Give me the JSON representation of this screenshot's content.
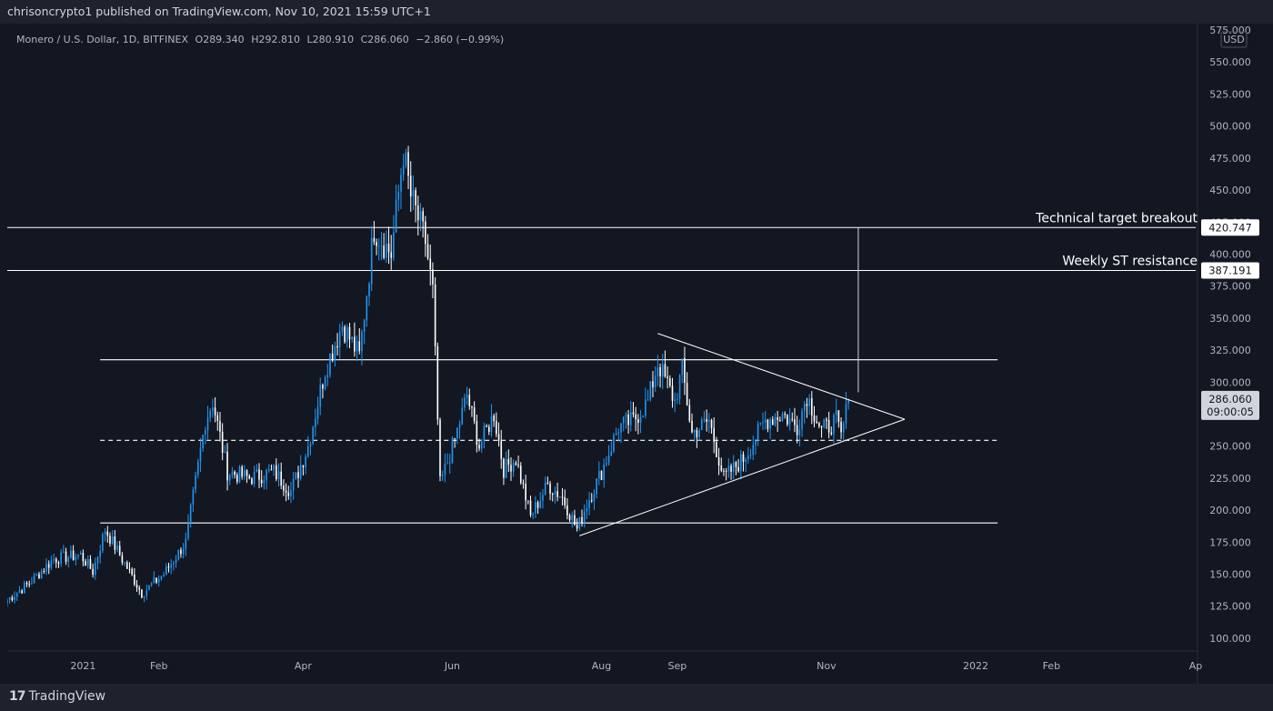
{
  "header": {
    "publisher": "chrisoncrypto1 published on TradingView.com, Nov 10, 2021 15:59 UTC+1"
  },
  "legend": {
    "symbol": "Monero / U.S. Dollar, 1D, BITFINEX",
    "open": "O289.340",
    "high": "H292.810",
    "low": "L280.910",
    "close": "C286.060",
    "change": "−2.860 (−0.99%)"
  },
  "footer": {
    "brand": "TradingView",
    "logo_icon": "tradingview-logo-icon"
  },
  "colors": {
    "up": "#2196f3",
    "down": "#ffffff",
    "background": "#131722",
    "lines": "#ffffff",
    "grid": "#1e222d"
  },
  "chart_data": {
    "type": "candlestick",
    "currency": "USD",
    "y_ticks": [
      "575.000",
      "550.000",
      "525.000",
      "500.000",
      "475.000",
      "450.000",
      "425.000",
      "400.000",
      "375.000",
      "350.000",
      "325.000",
      "300.000",
      "275.000",
      "250.000",
      "225.000",
      "200.000",
      "175.000",
      "150.000",
      "125.000",
      "100.000"
    ],
    "ylim": [
      90,
      580
    ],
    "x_ticks": [
      "2021",
      "Feb",
      "Apr",
      "Jun",
      "Aug",
      "Sep",
      "Nov",
      "2022",
      "Feb",
      "Ap"
    ],
    "x_tick_dates": [
      "2021-01-01",
      "2021-02-01",
      "2021-04-01",
      "2021-06-01",
      "2021-08-01",
      "2021-09-01",
      "2021-11-01",
      "2022-01-01",
      "2022-02-01",
      "2022-04-01"
    ],
    "xlim": [
      "2020-12-01",
      "2022-04-01"
    ],
    "price_labels": [
      {
        "value": 420.747,
        "text": "420.747"
      },
      {
        "value": 387.191,
        "text": "387.191"
      },
      {
        "value": 286.06,
        "text": "286.060",
        "sub": "09:00:05"
      }
    ],
    "annotations": [
      {
        "text": "Technical target breakout",
        "value": 420.747
      },
      {
        "text": "Weekly ST resistance",
        "value": 387.191
      }
    ],
    "horizontal_levels": [
      {
        "value": 420.747,
        "start": "2020-12-01",
        "end": "2022-04-01",
        "style": "solid"
      },
      {
        "value": 387.191,
        "start": "2020-12-01",
        "end": "2022-04-01",
        "style": "solid"
      },
      {
        "value": 317.5,
        "start": "2021-01-08",
        "end": "2022-01-10",
        "style": "solid"
      },
      {
        "value": 254.5,
        "start": "2021-01-08",
        "end": "2022-01-10",
        "style": "dashed"
      },
      {
        "value": 190,
        "start": "2021-01-08",
        "end": "2022-01-10",
        "style": "solid"
      }
    ],
    "triangle": {
      "upper": [
        {
          "date": "2021-08-24",
          "value": 338
        },
        {
          "date": "2021-12-03",
          "value": 271
        }
      ],
      "lower": [
        {
          "date": "2021-07-23",
          "value": 180
        },
        {
          "date": "2021-12-03",
          "value": 271
        }
      ]
    },
    "target_projection": {
      "date": "2021-11-14",
      "from": 292,
      "to": 420.747
    },
    "candle_anchors": [
      [
        "2020-12-01",
        130
      ],
      [
        "2020-12-10",
        143
      ],
      [
        "2020-12-20",
        162
      ],
      [
        "2020-12-31",
        165
      ],
      [
        "2021-01-05",
        152
      ],
      [
        "2021-01-10",
        185
      ],
      [
        "2021-01-16",
        165
      ],
      [
        "2021-01-25",
        135
      ],
      [
        "2021-02-03",
        150
      ],
      [
        "2021-02-12",
        175
      ],
      [
        "2021-02-20",
        270
      ],
      [
        "2021-02-23",
        285
      ],
      [
        "2021-03-01",
        230
      ],
      [
        "2021-03-10",
        225
      ],
      [
        "2021-03-20",
        230
      ],
      [
        "2021-03-27",
        215
      ],
      [
        "2021-04-03",
        250
      ],
      [
        "2021-04-10",
        310
      ],
      [
        "2021-04-17",
        345
      ],
      [
        "2021-04-24",
        320
      ],
      [
        "2021-04-30",
        420
      ],
      [
        "2021-05-07",
        400
      ],
      [
        "2021-05-12",
        480
      ],
      [
        "2021-05-15",
        445
      ],
      [
        "2021-05-21",
        410
      ],
      [
        "2021-05-24",
        370
      ],
      [
        "2021-05-27",
        220
      ],
      [
        "2021-06-02",
        255
      ],
      [
        "2021-06-07",
        290
      ],
      [
        "2021-06-12",
        250
      ],
      [
        "2021-06-18",
        275
      ],
      [
        "2021-06-22",
        232
      ],
      [
        "2021-06-27",
        240
      ],
      [
        "2021-07-03",
        195
      ],
      [
        "2021-07-10",
        220
      ],
      [
        "2021-07-16",
        210
      ],
      [
        "2021-07-22",
        185
      ],
      [
        "2021-07-26",
        205
      ],
      [
        "2021-08-01",
        230
      ],
      [
        "2021-08-08",
        265
      ],
      [
        "2021-08-14",
        270
      ],
      [
        "2021-08-20",
        285
      ],
      [
        "2021-08-24",
        315
      ],
      [
        "2021-08-31",
        285
      ],
      [
        "2021-09-03",
        310
      ],
      [
        "2021-09-07",
        260
      ],
      [
        "2021-09-14",
        270
      ],
      [
        "2021-09-20",
        225
      ],
      [
        "2021-09-28",
        240
      ],
      [
        "2021-10-07",
        270
      ],
      [
        "2021-10-14",
        275
      ],
      [
        "2021-10-20",
        265
      ],
      [
        "2021-10-24",
        290
      ],
      [
        "2021-10-30",
        262
      ],
      [
        "2021-11-05",
        270
      ],
      [
        "2021-11-07",
        257
      ],
      [
        "2021-11-10",
        286
      ]
    ]
  }
}
